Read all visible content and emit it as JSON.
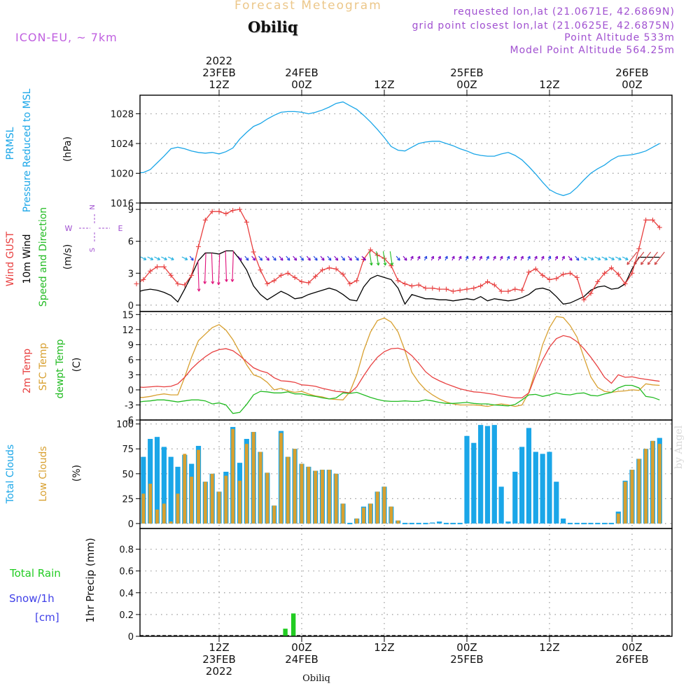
{
  "header": {
    "title": "Forecast Meteogram",
    "place": "Obiliq",
    "model": "ICON-EU, ~ 7km",
    "requested": "requested lon,lat (21.0671E, 42.6869N)",
    "grid_point": "grid point closest lon,lat (21.0625E, 42.6875N)",
    "point_altitude": "Point Altitude 533m",
    "model_altitude": "Model Point Altitude 564.25m",
    "footer_place": "Obiliq",
    "watermark": "by Angel"
  },
  "colors": {
    "pressure": "#1aa6e8",
    "gust": "#e84040",
    "wind10m": "#000000",
    "wind_green": "#22bb22",
    "temp2m": "#e84040",
    "sfc_temp": "#d8a030",
    "dewpt": "#22bb22",
    "total_cloud": "#1aa6e8",
    "low_cloud": "#d8a030",
    "rain": "#22cc22",
    "snow": "#4040e8",
    "purple": "#a050d0",
    "arrow_purple": "#8000c0",
    "arrow_blue": "#2040e0",
    "arrow_cyan": "#20b0e0"
  },
  "time_axis": {
    "top_labels": [
      {
        "x_hour": 12,
        "lines": [
          "2022",
          "23FEB",
          "12Z"
        ]
      },
      {
        "x_hour": 24,
        "lines": [
          "24FEB",
          "00Z"
        ]
      },
      {
        "x_hour": 36,
        "lines": [
          "12Z"
        ]
      },
      {
        "x_hour": 48,
        "lines": [
          "25FEB",
          "00Z"
        ]
      },
      {
        "x_hour": 60,
        "lines": [
          "12Z"
        ]
      },
      {
        "x_hour": 72,
        "lines": [
          "26FEB",
          "00Z"
        ]
      }
    ],
    "bottom_labels": [
      {
        "x_hour": 12,
        "lines": [
          "12Z",
          "23FEB",
          "2022"
        ]
      },
      {
        "x_hour": 24,
        "lines": [
          "00Z",
          "24FEB"
        ]
      },
      {
        "x_hour": 36,
        "lines": [
          "12Z"
        ]
      },
      {
        "x_hour": 48,
        "lines": [
          "00Z",
          "25FEB"
        ]
      },
      {
        "x_hour": 60,
        "lines": [
          "12Z"
        ]
      },
      {
        "x_hour": 72,
        "lines": [
          "00Z",
          "26FEB"
        ]
      }
    ]
  },
  "chart_data": [
    {
      "type": "line",
      "panel": "pressure",
      "title": "PRMSL Pressure Reduced to MSL",
      "ylabel": "(hPa)",
      "ylim": [
        1016,
        1030.5
      ],
      "yticks": [
        1016,
        1020,
        1024,
        1028
      ],
      "grid": true,
      "x_hours": [
        0,
        1,
        2,
        3,
        4,
        5,
        6,
        7,
        8,
        9,
        10,
        11,
        12,
        13,
        14,
        15,
        16,
        17,
        18,
        19,
        20,
        21,
        22,
        23,
        24,
        25,
        26,
        27,
        28,
        29,
        30,
        31,
        32,
        33,
        34,
        35,
        36,
        37,
        38,
        39,
        40,
        41,
        42,
        43,
        44,
        45,
        46,
        47,
        48,
        49,
        50,
        51,
        52,
        53,
        54,
        55,
        56,
        57,
        58,
        59,
        60,
        61,
        62,
        63,
        64,
        65,
        66,
        67,
        68,
        69,
        70,
        71,
        72,
        73,
        74,
        75,
        76
      ],
      "series": [
        {
          "name": "PRMSL",
          "values": [
            1020.1,
            1020.1,
            1020.5,
            1021.4,
            1022.3,
            1023.3,
            1023.5,
            1023.3,
            1023.0,
            1022.8,
            1022.7,
            1022.8,
            1022.6,
            1022.9,
            1023.4,
            1024.6,
            1025.5,
            1026.3,
            1026.7,
            1027.3,
            1027.8,
            1028.2,
            1028.3,
            1028.3,
            1028.2,
            1028.0,
            1028.2,
            1028.5,
            1028.9,
            1029.4,
            1029.6,
            1029.1,
            1028.6,
            1027.8,
            1026.9,
            1025.9,
            1024.8,
            1023.6,
            1023.1,
            1023.0,
            1023.5,
            1024.0,
            1024.2,
            1024.3,
            1024.3,
            1024.0,
            1023.7,
            1023.3,
            1023.0,
            1022.6,
            1022.4,
            1022.3,
            1022.3,
            1022.6,
            1022.8,
            1022.4,
            1021.8,
            1020.9,
            1019.9,
            1018.8,
            1017.8,
            1017.3,
            1017.0,
            1017.3,
            1018.1,
            1019.1,
            1020.0,
            1020.6,
            1021.1,
            1021.8,
            1022.3,
            1022.4,
            1022.5,
            1022.7,
            1023.0,
            1023.5,
            1024.0
          ]
        }
      ]
    },
    {
      "type": "line",
      "panel": "wind",
      "title": "Wind GUST / 10m Wind Speed and Direction",
      "ylabel": "(m/s)",
      "ylim": [
        -0.6,
        9.6
      ],
      "yticks": [
        0,
        3,
        6,
        9
      ],
      "compass": {
        "north": "N",
        "south": "S",
        "west": "W",
        "east": "E"
      },
      "grid": true,
      "x_hours": [
        0,
        1,
        2,
        3,
        4,
        5,
        6,
        7,
        8,
        9,
        10,
        11,
        12,
        13,
        14,
        15,
        16,
        17,
        18,
        19,
        20,
        21,
        22,
        23,
        24,
        25,
        26,
        27,
        28,
        29,
        30,
        31,
        32,
        33,
        34,
        35,
        36,
        37,
        38,
        39,
        40,
        41,
        42,
        43,
        44,
        45,
        46,
        47,
        48,
        49,
        50,
        51,
        52,
        53,
        54,
        55,
        56,
        57,
        58,
        59,
        60,
        61,
        62,
        63,
        64,
        65,
        66,
        67,
        68,
        69,
        70,
        71,
        72,
        73,
        74,
        75,
        76
      ],
      "series": [
        {
          "name": "Wind GUST",
          "values": [
            2.0,
            2.4,
            3.2,
            3.6,
            3.6,
            2.8,
            2.0,
            1.9,
            2.8,
            5.5,
            8.0,
            8.8,
            8.8,
            8.6,
            8.9,
            9.0,
            7.8,
            5.0,
            3.3,
            2.0,
            2.3,
            2.8,
            3.0,
            2.6,
            2.2,
            2.1,
            2.7,
            3.3,
            3.5,
            3.4,
            2.9,
            2.0,
            2.3,
            4.3,
            5.2,
            4.7,
            4.4,
            3.7,
            2.3,
            2.0,
            1.8,
            1.9,
            1.6,
            1.6,
            1.5,
            1.5,
            1.3,
            1.4,
            1.5,
            1.6,
            1.8,
            2.2,
            1.9,
            1.3,
            1.3,
            1.5,
            1.4,
            3.1,
            3.4,
            2.8,
            2.4,
            2.5,
            2.9,
            3.0,
            2.6,
            0.5,
            1.1,
            2.2,
            3.0,
            3.5,
            2.9,
            2.0,
            3.0,
            5.3,
            8.0,
            8.0,
            7.3
          ]
        },
        {
          "name": "10m Wind",
          "values": [
            1.2,
            1.4,
            1.5,
            1.4,
            1.2,
            0.9,
            0.3,
            1.5,
            2.8,
            4.2,
            4.9,
            4.9,
            4.8,
            5.1,
            5.1,
            4.3,
            3.3,
            1.8,
            1.0,
            0.5,
            0.9,
            1.3,
            1.0,
            0.6,
            0.7,
            1.0,
            1.2,
            1.4,
            1.6,
            1.4,
            1.0,
            0.5,
            0.4,
            1.7,
            2.5,
            2.8,
            2.6,
            2.4,
            1.6,
            0.1,
            1.0,
            0.8,
            0.6,
            0.6,
            0.5,
            0.5,
            0.4,
            0.5,
            0.6,
            0.5,
            0.8,
            0.4,
            0.6,
            0.5,
            0.4,
            0.5,
            0.7,
            1.0,
            1.5,
            1.6,
            1.4,
            0.8,
            0.1,
            0.2,
            0.5,
            0.8,
            1.4,
            1.7,
            1.8,
            1.5,
            1.6,
            2.0,
            3.4,
            4.5,
            4.5,
            4.5,
            4.5
          ]
        }
      ]
    },
    {
      "type": "line",
      "panel": "temperature",
      "title": "2m Temp / SFC Temp / dewpt Temp",
      "ylabel": "(C)",
      "ylim": [
        -6,
        15.6
      ],
      "yticks": [
        -6,
        -3,
        0,
        3,
        6,
        9,
        12,
        15
      ],
      "grid": true,
      "x_hours": [
        0,
        1,
        2,
        3,
        4,
        5,
        6,
        7,
        8,
        9,
        10,
        11,
        12,
        13,
        14,
        15,
        16,
        17,
        18,
        19,
        20,
        21,
        22,
        23,
        24,
        25,
        26,
        27,
        28,
        29,
        30,
        31,
        32,
        33,
        34,
        35,
        36,
        37,
        38,
        39,
        40,
        41,
        42,
        43,
        44,
        45,
        46,
        47,
        48,
        49,
        50,
        51,
        52,
        53,
        54,
        55,
        56,
        57,
        58,
        59,
        60,
        61,
        62,
        63,
        64,
        65,
        66,
        67,
        68,
        69,
        70,
        71,
        72,
        73,
        74,
        75,
        76
      ],
      "series": [
        {
          "name": "2m Temp",
          "values": [
            0.6,
            0.5,
            0.6,
            0.7,
            0.6,
            0.7,
            1.2,
            2.5,
            4.2,
            5.5,
            6.6,
            7.5,
            8.0,
            8.2,
            7.8,
            6.8,
            5.6,
            4.4,
            3.8,
            3.4,
            2.4,
            1.8,
            1.7,
            1.5,
            1.0,
            0.9,
            0.7,
            0.3,
            0.0,
            -0.3,
            -0.4,
            -0.6,
            0.6,
            2.8,
            4.8,
            6.5,
            7.6,
            8.2,
            8.3,
            7.9,
            6.8,
            5.3,
            3.6,
            2.5,
            1.8,
            1.2,
            0.7,
            0.2,
            -0.1,
            -0.4,
            -0.5,
            -0.7,
            -0.9,
            -1.2,
            -1.4,
            -1.6,
            -1.6,
            -0.6,
            3.0,
            6.0,
            8.5,
            10.2,
            10.8,
            10.5,
            9.6,
            8.2,
            6.5,
            4.6,
            2.5,
            1.3,
            3.0,
            2.5,
            2.6,
            2.3,
            2.1,
            1.9,
            1.7
          ]
        },
        {
          "name": "SFC Temp",
          "values": [
            -1.5,
            -1.5,
            -1.3,
            -1.0,
            -0.8,
            -1.0,
            -1.0,
            2.5,
            6.5,
            9.8,
            11.1,
            12.4,
            13.0,
            11.9,
            10.0,
            7.5,
            5.0,
            3.0,
            2.5,
            1.5,
            0.0,
            0.3,
            -0.2,
            -0.5,
            -0.3,
            -0.8,
            -1.2,
            -1.4,
            -1.8,
            -1.9,
            -2.0,
            -0.4,
            3.0,
            7.8,
            11.5,
            13.8,
            14.3,
            13.5,
            11.5,
            7.8,
            3.5,
            1.5,
            0.0,
            -1.0,
            -1.8,
            -2.4,
            -2.8,
            -3.0,
            -3.0,
            -3.0,
            -3.1,
            -3.3,
            -3.0,
            -2.8,
            -3.0,
            -3.3,
            -3.0,
            -0.5,
            4.0,
            9.0,
            12.4,
            14.6,
            14.4,
            12.8,
            10.5,
            6.5,
            2.6,
            0.5,
            -0.3,
            -0.5,
            -0.3,
            -0.2,
            0.0,
            -0.1,
            1.2,
            1.0,
            0.9
          ]
        },
        {
          "name": "dewpt Temp",
          "values": [
            -2.5,
            -2.3,
            -2.2,
            -2.0,
            -2.0,
            -2.2,
            -2.4,
            -2.2,
            -2.0,
            -2.0,
            -2.2,
            -2.8,
            -2.6,
            -3.0,
            -4.7,
            -4.5,
            -2.9,
            -1.0,
            -0.3,
            -0.4,
            -0.6,
            -0.6,
            -0.4,
            -0.8,
            -0.8,
            -1.1,
            -1.3,
            -1.6,
            -1.8,
            -1.6,
            -0.6,
            -0.7,
            -0.5,
            -1.0,
            -1.5,
            -1.9,
            -2.2,
            -2.3,
            -2.3,
            -2.2,
            -2.3,
            -2.3,
            -2.0,
            -2.2,
            -2.5,
            -2.7,
            -2.7,
            -2.6,
            -2.5,
            -2.7,
            -2.8,
            -2.8,
            -3.0,
            -3.1,
            -3.2,
            -2.9,
            -2.0,
            -1.0,
            -0.9,
            -1.3,
            -1.0,
            -0.6,
            -0.9,
            -1.0,
            -0.7,
            -0.6,
            -1.1,
            -1.2,
            -0.8,
            -0.5,
            0.4,
            0.9,
            0.9,
            0.4,
            -1.3,
            -1.5,
            -2.0
          ]
        }
      ]
    },
    {
      "type": "bar",
      "panel": "clouds",
      "title": "Total Clouds / Low Clouds",
      "ylabel": "(%)",
      "ylim": [
        -5,
        104
      ],
      "yticks": [
        0,
        25,
        50,
        75,
        100
      ],
      "grid": true,
      "x_hours": [
        0,
        1,
        2,
        3,
        4,
        5,
        6,
        7,
        8,
        9,
        10,
        11,
        12,
        13,
        14,
        15,
        16,
        17,
        18,
        19,
        20,
        21,
        22,
        23,
        24,
        25,
        26,
        27,
        28,
        29,
        30,
        31,
        32,
        33,
        34,
        35,
        36,
        37,
        38,
        39,
        40,
        41,
        42,
        43,
        44,
        45,
        46,
        47,
        48,
        49,
        50,
        51,
        52,
        53,
        54,
        55,
        56,
        57,
        58,
        59,
        60,
        61,
        62,
        63,
        64,
        65,
        66,
        67,
        68,
        69,
        70,
        71,
        72,
        73,
        74,
        75,
        76
      ],
      "series": [
        {
          "name": "Total Clouds",
          "values": [
            50,
            67,
            85,
            87,
            77,
            67,
            57,
            69,
            60,
            78,
            42,
            50,
            32,
            52,
            97,
            61,
            85,
            92,
            72,
            51,
            18,
            93,
            67,
            75,
            60,
            57,
            53,
            54,
            54,
            50,
            20,
            0,
            5,
            17,
            20,
            32,
            37,
            17,
            3,
            0,
            0,
            0,
            0,
            1,
            2,
            0,
            0,
            0,
            88,
            81,
            99,
            98,
            99,
            37,
            2,
            52,
            77,
            96,
            72,
            70,
            72,
            42,
            5,
            0,
            0,
            0,
            0,
            0,
            0,
            0,
            12,
            43,
            54,
            65,
            75,
            83,
            86
          ]
        },
        {
          "name": "Low Clouds",
          "values": [
            14,
            30,
            40,
            14,
            20,
            2,
            30,
            70,
            47,
            74,
            42,
            50,
            32,
            48,
            95,
            43,
            80,
            92,
            72,
            51,
            18,
            91,
            67,
            75,
            60,
            57,
            53,
            54,
            54,
            50,
            20,
            0,
            5,
            16,
            20,
            32,
            37,
            17,
            3,
            0,
            0,
            0,
            0,
            0,
            0,
            0,
            0,
            0,
            0,
            0,
            0,
            0,
            0,
            0,
            0,
            0,
            0,
            0,
            0,
            0,
            0,
            0,
            0,
            0,
            0,
            0,
            0,
            0,
            0,
            0,
            10,
            42,
            54,
            65,
            75,
            83,
            80
          ]
        }
      ]
    },
    {
      "type": "bar",
      "panel": "precip",
      "title": "Total Rain / Snow/1h [cm]",
      "legend": {
        "rain": "Total  Rain",
        "snow": "Snow/1h",
        "snow_unit": "[cm]"
      },
      "ylabel": "1hr Precip (mm)",
      "ylim": [
        0,
        0.99
      ],
      "yticks": [
        0,
        0.2,
        0.4,
        0.6,
        0.8
      ],
      "grid": true,
      "x_hours": [
        22,
        23
      ],
      "series": [
        {
          "name": "Total Rain",
          "values": [
            0.07,
            0.21
          ]
        }
      ]
    }
  ]
}
